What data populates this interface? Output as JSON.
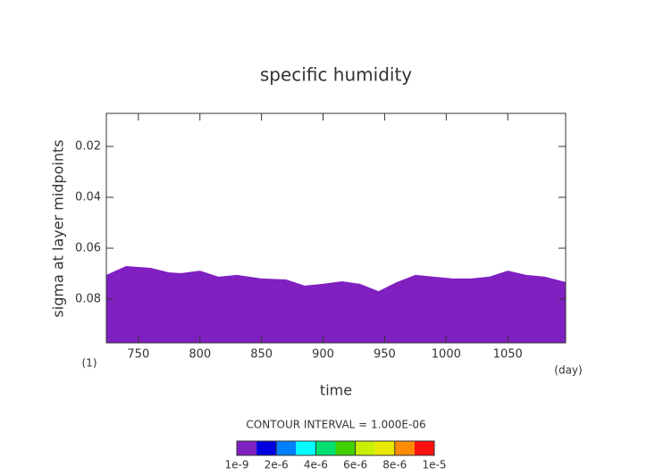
{
  "chart_data": {
    "type": "filled-contour",
    "title": "specific humidity",
    "xlabel": "time",
    "ylabel": "sigma at layer midpoints",
    "x_unit": "(day)",
    "y_unit": "(1)",
    "annotation": "CONTOUR INTERVAL = 1.000E-06",
    "xlim": [
      724,
      1097
    ],
    "xticks": [
      750,
      800,
      850,
      900,
      950,
      1000,
      1050
    ],
    "ylim": [
      0.007,
      0.0972
    ],
    "y_reversed": true,
    "yticks": [
      0.02,
      0.04,
      0.06,
      0.08
    ],
    "fill_color": "#8020c0",
    "x": [
      724,
      740,
      760,
      775,
      785,
      800,
      815,
      830,
      850,
      870,
      885,
      900,
      915,
      930,
      945,
      960,
      975,
      990,
      1005,
      1020,
      1035,
      1050,
      1065,
      1080,
      1097
    ],
    "values": [
      0.0705,
      0.067,
      0.0677,
      0.0695,
      0.0698,
      0.0688,
      0.0712,
      0.0705,
      0.0719,
      0.0723,
      0.0747,
      0.074,
      0.073,
      0.074,
      0.0769,
      0.0733,
      0.0705,
      0.0712,
      0.0719,
      0.0719,
      0.0712,
      0.0688,
      0.0705,
      0.0712,
      0.0733
    ],
    "colorbar": {
      "levels": [
        1e-09,
        1e-06,
        2e-06,
        3e-06,
        4e-06,
        5e-06,
        6e-06,
        7e-06,
        8e-06,
        9e-06,
        1e-05
      ],
      "colors": [
        "#8020c0",
        "#0000e0",
        "#0080ff",
        "#00ffff",
        "#00e070",
        "#40d000",
        "#c8f000",
        "#e8e800",
        "#ff8c00",
        "#ff1010"
      ],
      "ticks": [
        {
          "value": 1e-09,
          "label": "1e-9"
        },
        {
          "value": 2e-06,
          "label": "2e-6"
        },
        {
          "value": 4e-06,
          "label": "4e-6"
        },
        {
          "value": 6e-06,
          "label": "6e-6"
        },
        {
          "value": 8e-06,
          "label": "8e-6"
        },
        {
          "value": 1e-05,
          "label": "1e-5"
        }
      ]
    }
  }
}
